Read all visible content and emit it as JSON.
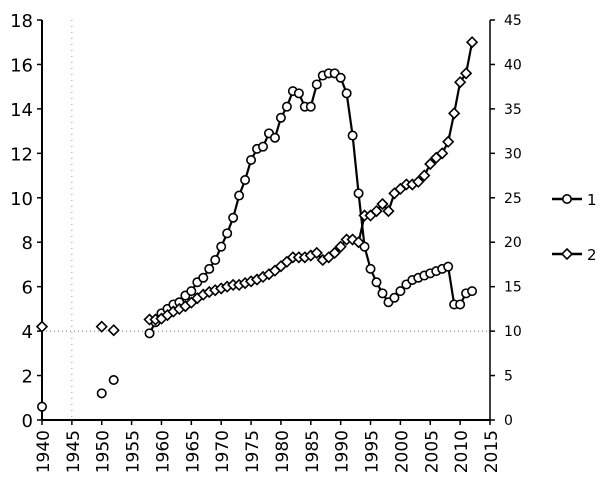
{
  "chart_data": {
    "type": "line",
    "title": "",
    "xlabel": "",
    "ylabel": "",
    "y2label": "",
    "xlim": [
      1940,
      2015
    ],
    "ylim": [
      0,
      18
    ],
    "y2lim": [
      0,
      45
    ],
    "x_ticks": [
      1940,
      1945,
      1950,
      1955,
      1960,
      1965,
      1970,
      1975,
      1980,
      1985,
      1990,
      1995,
      2000,
      2005,
      2010,
      2015
    ],
    "y_ticks": [
      0,
      2,
      4,
      6,
      8,
      10,
      12,
      14,
      16,
      18
    ],
    "y2_ticks": [
      0,
      5,
      10,
      15,
      20,
      25,
      30,
      35,
      40,
      45
    ],
    "grid": "dotted reference lines at y=4 and x=1945",
    "legend": "right",
    "series": [
      {
        "name": "1",
        "axis": "left",
        "marker": "circle",
        "points": [
          [
            1940,
            0.6
          ],
          [
            1950,
            1.2
          ],
          [
            1952,
            1.8
          ],
          [
            1958,
            3.9
          ],
          [
            1959,
            4.4
          ],
          [
            1960,
            4.8
          ],
          [
            1961,
            5.0
          ],
          [
            1962,
            5.2
          ],
          [
            1963,
            5.3
          ],
          [
            1964,
            5.6
          ],
          [
            1965,
            5.8
          ],
          [
            1966,
            6.2
          ],
          [
            1967,
            6.4
          ],
          [
            1968,
            6.8
          ],
          [
            1969,
            7.2
          ],
          [
            1970,
            7.8
          ],
          [
            1971,
            8.4
          ],
          [
            1972,
            9.1
          ],
          [
            1973,
            10.1
          ],
          [
            1974,
            10.8
          ],
          [
            1975,
            11.7
          ],
          [
            1976,
            12.2
          ],
          [
            1977,
            12.3
          ],
          [
            1978,
            12.9
          ],
          [
            1979,
            12.7
          ],
          [
            1980,
            13.6
          ],
          [
            1981,
            14.1
          ],
          [
            1982,
            14.8
          ],
          [
            1983,
            14.7
          ],
          [
            1984,
            14.1
          ],
          [
            1985,
            14.1
          ],
          [
            1986,
            15.1
          ],
          [
            1987,
            15.5
          ],
          [
            1988,
            15.6
          ],
          [
            1989,
            15.6
          ],
          [
            1990,
            15.4
          ],
          [
            1991,
            14.7
          ],
          [
            1992,
            12.8
          ],
          [
            1993,
            10.2
          ],
          [
            1994,
            7.8
          ],
          [
            1995,
            6.8
          ],
          [
            1996,
            6.2
          ],
          [
            1997,
            5.7
          ],
          [
            1998,
            5.3
          ],
          [
            1999,
            5.5
          ],
          [
            2000,
            5.8
          ],
          [
            2001,
            6.1
          ],
          [
            2002,
            6.3
          ],
          [
            2003,
            6.4
          ],
          [
            2004,
            6.5
          ],
          [
            2005,
            6.6
          ],
          [
            2006,
            6.7
          ],
          [
            2007,
            6.8
          ],
          [
            2008,
            6.9
          ],
          [
            2009,
            5.2
          ],
          [
            2010,
            5.2
          ],
          [
            2011,
            5.7
          ],
          [
            2012,
            5.8
          ]
        ]
      },
      {
        "name": "2",
        "axis": "right",
        "marker": "diamond",
        "points": [
          [
            1940,
            10.5
          ],
          [
            1950,
            10.5
          ],
          [
            1952,
            10.1
          ],
          [
            1958,
            11.3
          ],
          [
            1959,
            11.3
          ],
          [
            1960,
            11.4
          ],
          [
            1961,
            11.8
          ],
          [
            1962,
            12.2
          ],
          [
            1963,
            12.5
          ],
          [
            1964,
            12.8
          ],
          [
            1965,
            13.2
          ],
          [
            1966,
            13.7
          ],
          [
            1967,
            14.1
          ],
          [
            1968,
            14.4
          ],
          [
            1969,
            14.6
          ],
          [
            1970,
            14.8
          ],
          [
            1971,
            15.0
          ],
          [
            1972,
            15.2
          ],
          [
            1973,
            15.2
          ],
          [
            1974,
            15.4
          ],
          [
            1975,
            15.6
          ],
          [
            1976,
            15.8
          ],
          [
            1977,
            16.1
          ],
          [
            1978,
            16.4
          ],
          [
            1979,
            16.8
          ],
          [
            1980,
            17.3
          ],
          [
            1981,
            17.8
          ],
          [
            1982,
            18.3
          ],
          [
            1983,
            18.3
          ],
          [
            1984,
            18.3
          ],
          [
            1985,
            18.5
          ],
          [
            1986,
            18.8
          ],
          [
            1987,
            18.0
          ],
          [
            1988,
            18.3
          ],
          [
            1989,
            18.8
          ],
          [
            1990,
            19.5
          ],
          [
            1991,
            20.3
          ],
          [
            1992,
            20.3
          ],
          [
            1993,
            20.0
          ],
          [
            1994,
            23.0
          ],
          [
            1995,
            23.0
          ],
          [
            1996,
            23.5
          ],
          [
            1997,
            24.3
          ],
          [
            1998,
            23.5
          ],
          [
            1999,
            25.5
          ],
          [
            2000,
            26.0
          ],
          [
            2001,
            26.5
          ],
          [
            2002,
            26.5
          ],
          [
            2003,
            26.8
          ],
          [
            2004,
            27.5
          ],
          [
            2005,
            28.8
          ],
          [
            2006,
            29.5
          ],
          [
            2007,
            30.0
          ],
          [
            2008,
            31.3
          ],
          [
            2009,
            34.5
          ],
          [
            2010,
            38.0
          ],
          [
            2011,
            39.0
          ],
          [
            2012,
            42.5
          ]
        ]
      }
    ]
  }
}
